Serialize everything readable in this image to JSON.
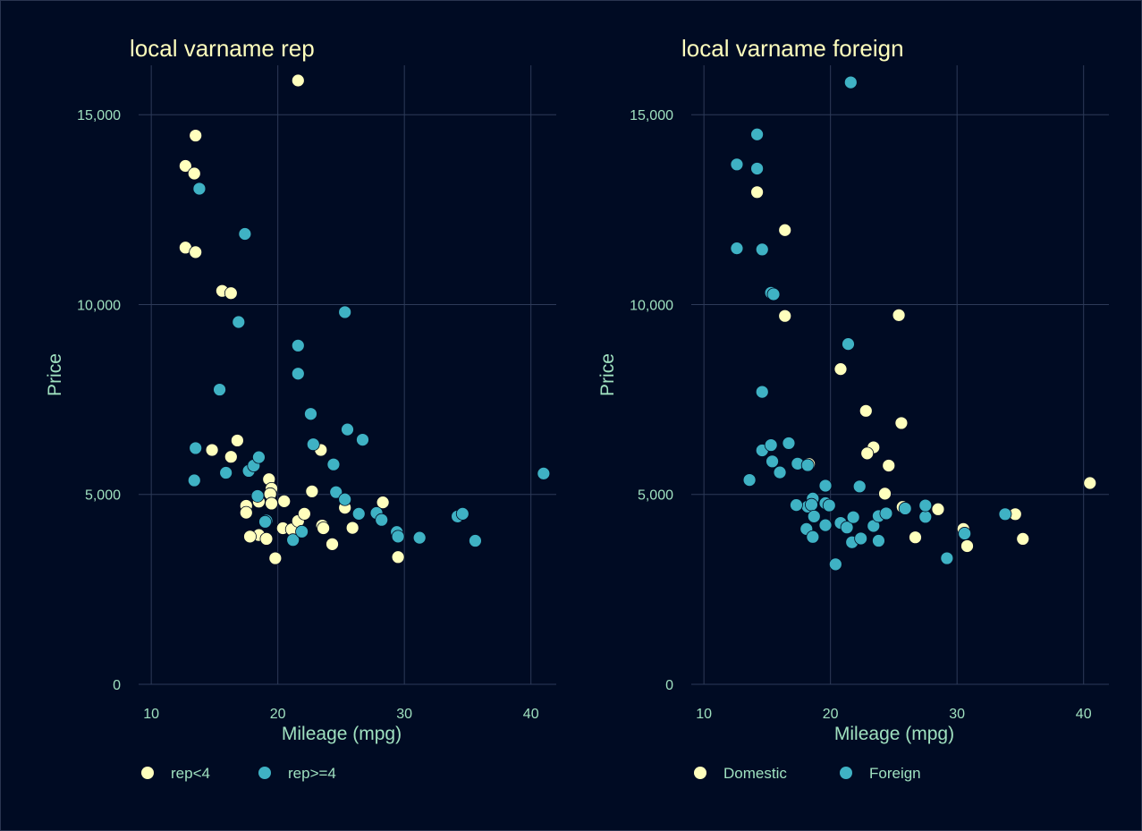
{
  "colors": {
    "background": "#000b23",
    "grid": "#2d3a58",
    "text": "#9fe0bf",
    "title": "#ffffbd"
  },
  "chart_data": [
    {
      "type": "scatter",
      "title": "local varname rep",
      "xlabel": "Mileage (mpg)",
      "ylabel": "Price",
      "xlim": [
        9,
        42
      ],
      "ylim": [
        0,
        16300
      ],
      "xticks": [
        10,
        20,
        30,
        40
      ],
      "xtick_labels": [
        "10",
        "20",
        "30",
        "40"
      ],
      "yticks": [
        0,
        5000,
        10000,
        15000
      ],
      "ytick_labels": [
        "0",
        "5,000",
        "10,000",
        "15,000"
      ],
      "grid": true,
      "legend_position": "bottom-left",
      "series": [
        {
          "name": "rep<4",
          "color": "#ffffbd",
          "x": [
            21.6,
            13.5,
            12.7,
            13.4,
            12.7,
            13.5,
            15.6,
            16.3,
            16.8,
            14.8,
            16.3,
            17.5,
            17.5,
            18.5,
            18.5,
            17.8,
            19.1,
            19.3,
            19.5,
            19.4,
            19.5,
            20.5,
            19.8,
            20.4,
            21.1,
            21.6,
            22.1,
            22.7,
            23.4,
            23.5,
            23.6,
            24.3,
            25.3,
            25.9,
            28.3,
            29.5
          ],
          "y": [
            15900,
            14450,
            13650,
            13450,
            11500,
            11380,
            10360,
            10300,
            6420,
            6170,
            5990,
            4700,
            4520,
            4810,
            3930,
            3890,
            3830,
            5400,
            5150,
            5010,
            4760,
            4820,
            3320,
            4110,
            4080,
            4300,
            4490,
            5080,
            6170,
            4180,
            4110,
            3690,
            4650,
            4120,
            4790,
            3350
          ]
        },
        {
          "name": "rep>=4",
          "color": "#3fb2c4",
          "x": [
            13.8,
            13.5,
            13.4,
            15.9,
            15.4,
            16.9,
            17.4,
            17.7,
            18.1,
            18.5,
            18.4,
            19.1,
            19.0,
            21.6,
            21.6,
            21.2,
            21.9,
            22.6,
            22.8,
            24.4,
            24.6,
            25.3,
            25.5,
            25.3,
            26.4,
            26.7,
            27.8,
            28.2,
            29.4,
            29.5,
            31.2,
            34.2,
            34.6,
            35.6,
            41.0
          ],
          "y": [
            13050,
            6220,
            5370,
            5570,
            7760,
            9540,
            11860,
            5620,
            5760,
            5980,
            4960,
            4310,
            4280,
            8920,
            8180,
            3800,
            4020,
            7120,
            6320,
            5790,
            5060,
            9800,
            6710,
            4870,
            4490,
            6440,
            4510,
            4330,
            4010,
            3890,
            3860,
            4420,
            4490,
            3780,
            5550
          ]
        }
      ]
    },
    {
      "type": "scatter",
      "title": "local varname foreign",
      "xlabel": "Mileage (mpg)",
      "ylabel": "Price",
      "xlim": [
        9,
        42
      ],
      "ylim": [
        0,
        16300
      ],
      "xticks": [
        10,
        20,
        30,
        40
      ],
      "xtick_labels": [
        "10",
        "20",
        "30",
        "40"
      ],
      "yticks": [
        0,
        5000,
        10000,
        15000
      ],
      "ytick_labels": [
        "0",
        "5,000",
        "10,000",
        "15,000"
      ],
      "grid": true,
      "legend_position": "bottom-left",
      "series": [
        {
          "name": "Domestic",
          "color": "#ffffbd",
          "x": [
            14.2,
            16.4,
            16.4,
            18.3,
            20.8,
            22.8,
            23.4,
            25.4,
            25.6,
            22.9,
            24.6,
            24.3,
            25.7,
            28.5,
            26.7,
            30.5,
            30.8,
            34.6,
            35.2,
            40.5
          ],
          "y": [
            12960,
            11960,
            9700,
            5800,
            8300,
            7200,
            6240,
            9720,
            6880,
            6080,
            5760,
            5020,
            4670,
            4610,
            3870,
            4090,
            3640,
            4480,
            3830,
            5300
          ]
        },
        {
          "name": "Foreign",
          "color": "#3fb2c4",
          "x": [
            21.6,
            14.2,
            12.6,
            14.2,
            12.6,
            14.6,
            15.3,
            15.5,
            21.4,
            14.6,
            14.6,
            15.3,
            16.7,
            13.6,
            15.4,
            16.0,
            17.4,
            18.2,
            18.2,
            18.6,
            17.3,
            18.5,
            18.7,
            19.6,
            19.6,
            18.1,
            18.6,
            19.9,
            19.6,
            20.8,
            21.3,
            21.8,
            22.3,
            21.7,
            22.4,
            23.4,
            23.8,
            24.4,
            23.8,
            20.4,
            25.9,
            27.5,
            27.5,
            29.2,
            30.6,
            33.8
          ],
          "y": [
            15850,
            14480,
            13690,
            13580,
            11480,
            11450,
            10310,
            10270,
            8960,
            7700,
            6160,
            6300,
            6350,
            5380,
            5870,
            5580,
            5810,
            5770,
            4680,
            4890,
            4720,
            4730,
            4420,
            4770,
            4190,
            4090,
            3880,
            4710,
            5230,
            4250,
            4130,
            4400,
            5210,
            3740,
            3840,
            4170,
            4430,
            4500,
            3780,
            3160,
            4630,
            4410,
            4710,
            3320,
            3970,
            4480
          ]
        }
      ]
    }
  ]
}
